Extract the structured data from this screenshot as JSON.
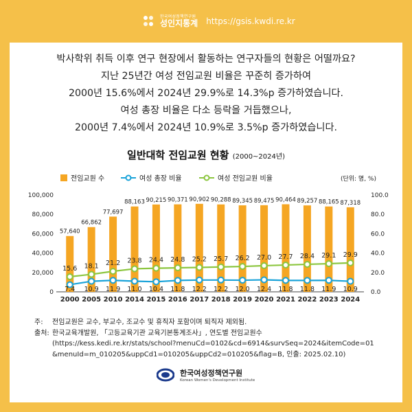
{
  "header": {
    "brand_sub": "한국여성정책연구원",
    "brand_name": "성인지통계",
    "url": "https://gsis.kwdi.re.kr"
  },
  "intro": [
    "박사학위 취득 이후 연구 현장에서 활동하는 연구자들의 현황은 어떨까요?",
    "지난 25년간 여성 전임교원 비율은 꾸준히 증가하여",
    "2000년 15.6%에서 2024년 29.9%로 14.3%p 증가하였습니다.",
    "여성 총장 비율은 다소 등락을 거듭했으나,",
    "2000년 7.4%에서 2024년 10.9%로 3.5%p 증가하였습니다."
  ],
  "colors": {
    "bar": "#f5a623",
    "line_president": "#1aa3d9",
    "line_female": "#8cc63f",
    "frame": "#f5c049"
  },
  "chart_data": {
    "type": "bar",
    "title": "일반대학 전임교원 현황",
    "subtitle": "(2000~2024년)",
    "unit_label": "(단위: 명, %)",
    "categories": [
      "2000",
      "2005",
      "2010",
      "2014",
      "2015",
      "2016",
      "2017",
      "2018",
      "2019",
      "2020",
      "2021",
      "2022",
      "2023",
      "2024"
    ],
    "series": [
      {
        "name": "전임교원 수",
        "type": "bar",
        "axis": "left",
        "values": [
          57640,
          66862,
          77697,
          88163,
          90215,
          90371,
          90902,
          90288,
          89345,
          89475,
          90464,
          89257,
          88165,
          87318
        ],
        "labels": [
          "57,640",
          "66,862",
          "77,697",
          "88,163",
          "90,215",
          "90,371",
          "90,902",
          "90,288",
          "89,345",
          "89,475",
          "90,464",
          "89,257",
          "88,165",
          "87,318"
        ]
      },
      {
        "name": "여성 총장 비율",
        "type": "line",
        "axis": "right",
        "values": [
          7.4,
          10.9,
          11.9,
          11.0,
          10.4,
          11.8,
          12.2,
          12.2,
          12.0,
          12.4,
          11.8,
          11.8,
          11.9,
          10.9
        ],
        "labels": [
          "7.4",
          "10.9",
          "11.9",
          "11.0",
          "10.4",
          "11.8",
          "12.2",
          "12.2",
          "12.0",
          "12.4",
          "11.8",
          "11.8",
          "11.9",
          "10.9"
        ]
      },
      {
        "name": "여성 전임교원 비율",
        "type": "line",
        "axis": "right",
        "values": [
          15.6,
          18.1,
          21.2,
          23.8,
          24.4,
          24.8,
          25.2,
          25.7,
          26.2,
          27.0,
          27.7,
          28.4,
          29.1,
          29.9
        ],
        "labels": [
          "15.6",
          "18.1",
          "21.2",
          "23.8",
          "24.4",
          "24.8",
          "25.2",
          "25.7",
          "26.2",
          "27.0",
          "27.7",
          "28.4",
          "29.1",
          "29.9"
        ]
      }
    ],
    "y_left": {
      "min": 0,
      "max": 100000,
      "ticks": [
        0,
        20000,
        40000,
        60000,
        80000,
        100000
      ],
      "tick_labels": [
        "0",
        "20,000",
        "40,000",
        "60,000",
        "80,000",
        "100,000"
      ]
    },
    "y_right": {
      "min": 0,
      "max": 100,
      "ticks": [
        0,
        20,
        40,
        60,
        80,
        100
      ],
      "tick_labels": [
        "0.0",
        "20.0",
        "40.0",
        "60.0",
        "80.0",
        "100.0"
      ]
    },
    "grid": false,
    "legend_position": "top"
  },
  "notes": {
    "note_label": "주:",
    "note_text": "전임교원은 교수, 부교수, 조교수 및 휴직자 포함이며 퇴직자 제외됨.",
    "source_label": "출처:",
    "source_text": "한국교육개발원, 「고등교육기관 교육기본통계조사」, 연도별 전임교원수",
    "source_url_1": "(https://kess.kedi.re.kr/stats/school?menuCd=0102&cd=6914&survSeq=2024&itemCode=01",
    "source_url_2": "&menuId=m_010205&uppCd1=010205&uppCd2=010205&flag=B, 인출: 2025.02.10)"
  },
  "footer": {
    "org_kr": "한국여성정책연구원",
    "org_en": "Korean Women's Development Institute"
  }
}
